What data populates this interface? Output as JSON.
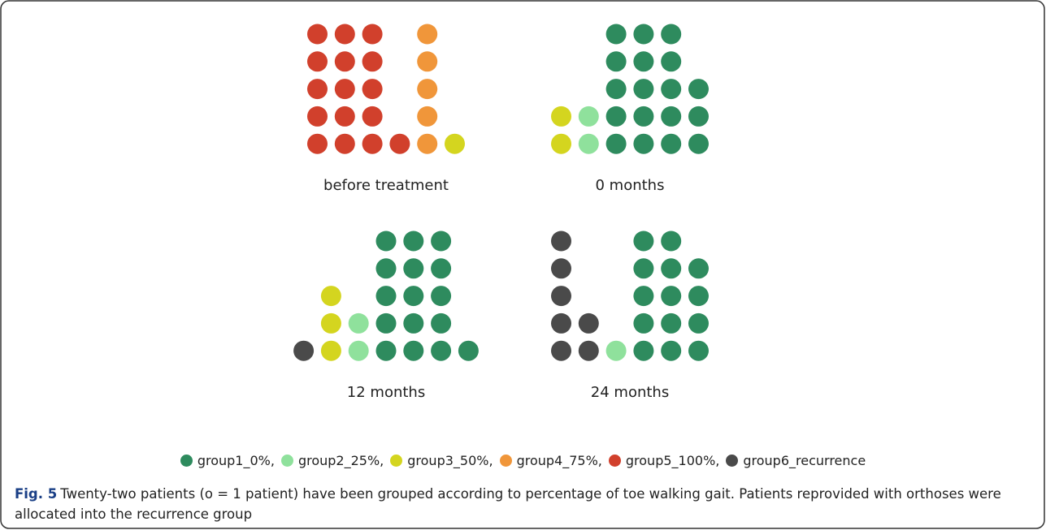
{
  "chart_data": [
    {
      "type": "unit",
      "title": "before treatment",
      "values": [
        0,
        0,
        1,
        5,
        16,
        0
      ]
    },
    {
      "type": "unit",
      "title": "0 months",
      "values": [
        18,
        2,
        2,
        0,
        0,
        0
      ]
    },
    {
      "type": "unit",
      "title": "12 months",
      "values": [
        16,
        2,
        3,
        0,
        0,
        1
      ]
    },
    {
      "type": "unit",
      "title": "24 months",
      "values": [
        14,
        1,
        0,
        0,
        0,
        7
      ]
    }
  ],
  "legend": [
    {
      "name": "group1_0%",
      "color": "#2e8b5e"
    },
    {
      "name": "group2_25%",
      "color": "#8fe19c"
    },
    {
      "name": "group3_50%",
      "color": "#d4d51f"
    },
    {
      "name": "group4_75%",
      "color": "#f0963a"
    },
    {
      "name": "group5_100%",
      "color": "#d1402c"
    },
    {
      "name": "group6_recurrence",
      "color": "#4a4a4a"
    }
  ],
  "caption": {
    "label": "Fig. 5",
    "text": "Twenty-two patients (o = 1 patient) have been grouped according to percentage of toe walking gait. Patients reprovided with orthoses were allocated into the recurrence group"
  }
}
